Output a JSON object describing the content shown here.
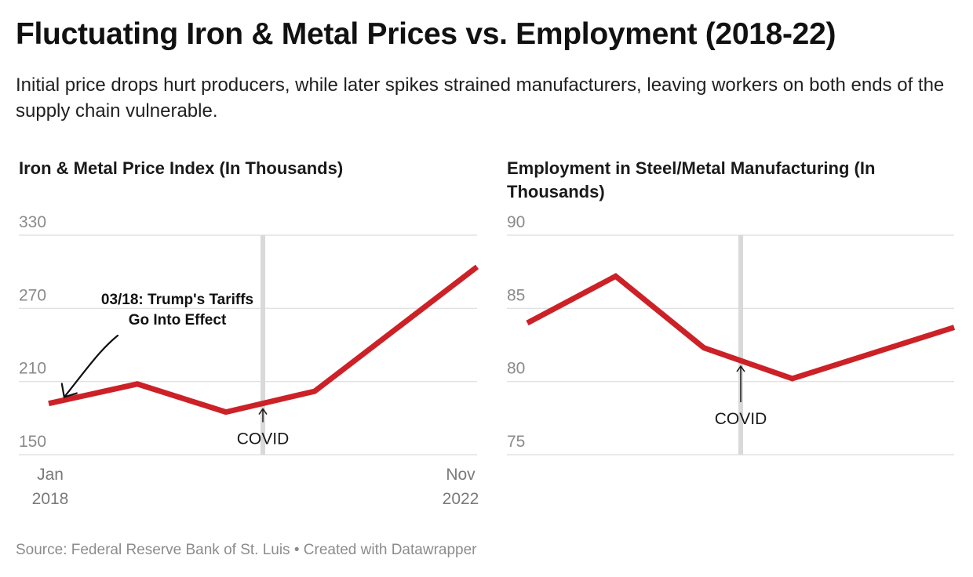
{
  "title": "Fluctuating Iron & Metal Prices vs. Employment (2018-22)",
  "subtitle": "Initial price drops hurt producers, while later spikes strained manufacturers, leaving workers on both ends of the supply chain vulnerable.",
  "source": "Source: Federal Reserve Bank of St. Luis • Created with Datawrapper",
  "colors": {
    "line": "#cc2127",
    "grid": "#dddddd",
    "covid_band": "#d9d9d9"
  },
  "chart_data": [
    {
      "type": "line",
      "title": "Iron & Metal Price Index (In Thousands)",
      "x": [
        "2018-01",
        "2019-01",
        "2020-01",
        "2021-01",
        "2022-11"
      ],
      "values": [
        192,
        208,
        185,
        202,
        304
      ],
      "ylim": [
        150,
        330
      ],
      "y_ticks": [
        330,
        270,
        210,
        150
      ],
      "x_tick_labels": [
        [
          "Jan",
          "2018"
        ],
        [
          "Nov",
          "2022"
        ]
      ],
      "grid": true,
      "covid_marker": {
        "x": "2020-06",
        "label": "COVID"
      },
      "callout": {
        "x": "2018-03",
        "lines": [
          "03/18: Trump's Tariffs",
          "Go Into Effect"
        ]
      }
    },
    {
      "type": "line",
      "title": "Employment in Steel/Metal Manufacturing (In Thousands)",
      "x": [
        "2018-01",
        "2019-01",
        "2020-01",
        "2021-01",
        "2022-11"
      ],
      "values": [
        84.0,
        87.2,
        82.3,
        80.2,
        83.7
      ],
      "ylim": [
        75,
        90
      ],
      "y_ticks": [
        90,
        85,
        80,
        75
      ],
      "grid": true,
      "covid_marker": {
        "x": "2020-06",
        "label": "COVID"
      }
    }
  ]
}
